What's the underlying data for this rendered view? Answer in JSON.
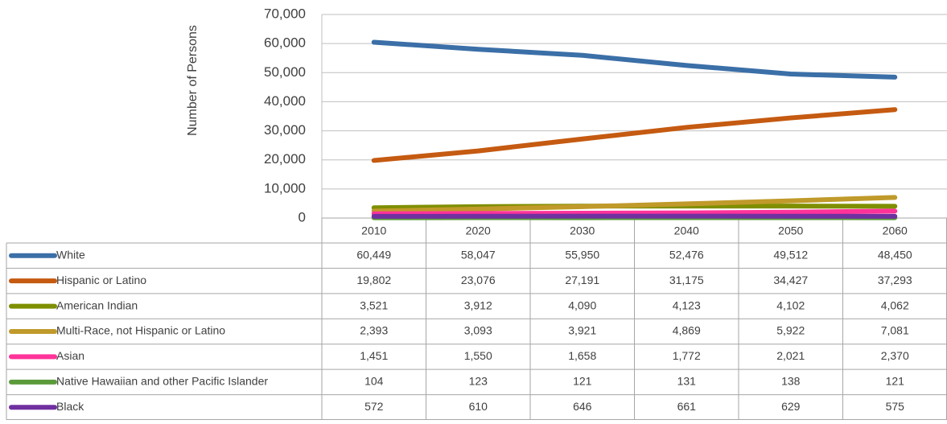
{
  "chart_data": {
    "type": "line",
    "y_axis_label": "Number of Persons",
    "categories": [
      "2010",
      "2020",
      "2030",
      "2040",
      "2050",
      "2060"
    ],
    "ylim": [
      0,
      70000
    ],
    "yticks": [
      0,
      {
        "value": 10000,
        "label": "10,000"
      },
      {
        "value": 20000,
        "label": "20,000"
      },
      {
        "value": 30000,
        "label": "30,000"
      },
      {
        "value": 40000,
        "label": "40,000"
      },
      {
        "value": 50000,
        "label": "50,000"
      },
      {
        "value": 60000,
        "label": "60,000"
      },
      {
        "value": 70000,
        "label": "70,000"
      }
    ],
    "grid": true,
    "series": [
      {
        "name": "White",
        "color": "#3b6fa7",
        "values": [
          60449,
          58047,
          55950,
          52476,
          49512,
          48450
        ],
        "value_labels": [
          "60,449",
          "58,047",
          "55,950",
          "52,476",
          "49,512",
          "48,450"
        ]
      },
      {
        "name": "Hispanic or Latino",
        "color": "#c55a11",
        "values": [
          19802,
          23076,
          27191,
          31175,
          34427,
          37293
        ],
        "value_labels": [
          "19,802",
          "23,076",
          "27,191",
          "31,175",
          "34,427",
          "37,293"
        ]
      },
      {
        "name": "American Indian",
        "color": "#7f8f00",
        "values": [
          3521,
          3912,
          4090,
          4123,
          4102,
          4062
        ],
        "value_labels": [
          "3,521",
          "3,912",
          "4,090",
          "4,123",
          "4,102",
          "4,062"
        ]
      },
      {
        "name": "Multi-Race, not Hispanic or Latino",
        "color": "#c09a2a",
        "values": [
          2393,
          3093,
          3921,
          4869,
          5922,
          7081
        ],
        "value_labels": [
          "2,393",
          "3,093",
          "3,921",
          "4,869",
          "5,922",
          "7,081"
        ]
      },
      {
        "name": "Asian",
        "color": "#ff3399",
        "values": [
          1451,
          1550,
          1658,
          1772,
          2021,
          2370
        ],
        "value_labels": [
          "1,451",
          "1,550",
          "1,658",
          "1,772",
          "2,021",
          "2,370"
        ]
      },
      {
        "name": "Native Hawaiian and other Pacific Islander",
        "color": "#5b9a3a",
        "values": [
          104,
          123,
          121,
          131,
          138,
          121
        ]
      },
      {
        "name": "Black",
        "color": "#7030a0",
        "values": [
          572,
          610,
          646,
          661,
          629,
          575
        ]
      }
    ]
  }
}
